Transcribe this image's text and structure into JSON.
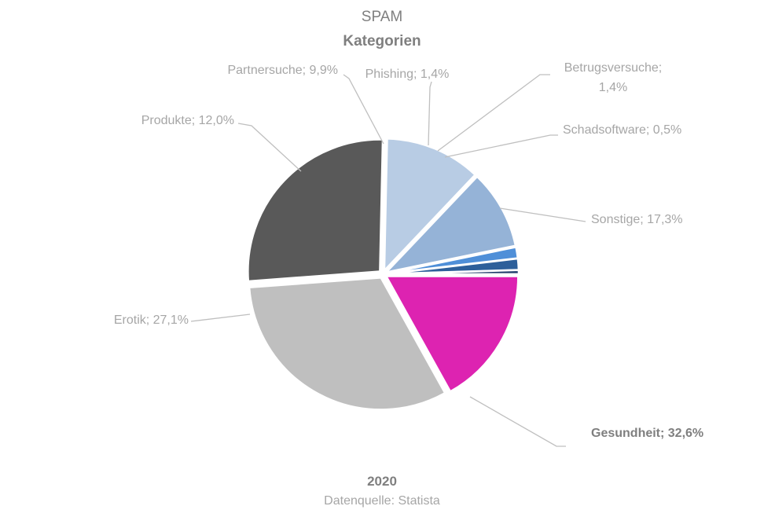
{
  "chart_data": {
    "type": "pie",
    "title": "SPAM",
    "subtitle": "Kategorien",
    "footer_year": "2020",
    "footer_source": "Datenquelle: Statista",
    "legend": "none",
    "slices": [
      {
        "name": "Sonstige",
        "value": 17.3,
        "label": "Sonstige; 17,3%",
        "color": "#dd23b1",
        "bold": false
      },
      {
        "name": "Gesundheit",
        "value": 32.6,
        "label": "Gesundheit; 32,6%",
        "color": "#bfbfbf",
        "bold": true
      },
      {
        "name": "Erotik",
        "value": 27.1,
        "label": "Erotik; 27,1%",
        "color": "#595959",
        "bold": false
      },
      {
        "name": "Produkte",
        "value": 12.0,
        "label": "Produkte; 12,0%",
        "color": "#b8cce4",
        "bold": false
      },
      {
        "name": "Partnersuche",
        "value": 9.9,
        "label": "Partnersuche; 9,9%",
        "color": "#95b3d7",
        "bold": false
      },
      {
        "name": "Phishing",
        "value": 1.4,
        "label": "Phishing; 1,4%",
        "color": "#4f8fd8",
        "bold": false
      },
      {
        "name": "Betrugsversuche",
        "value": 1.4,
        "label_lines": [
          "Betrugsversuche;",
          "1,4%"
        ],
        "color": "#2d5f9a",
        "bold": false
      },
      {
        "name": "Schadsoftware",
        "value": 0.5,
        "label": "Schadsoftware; 0,5%",
        "color": "#1f3d6b",
        "bold": false
      }
    ]
  }
}
